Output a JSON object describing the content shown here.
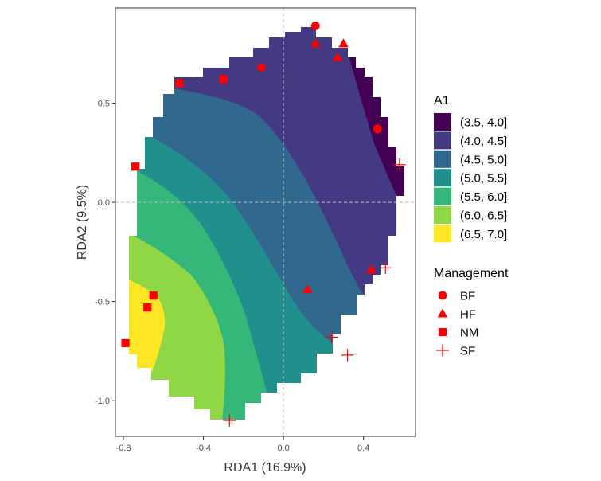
{
  "chart_data": {
    "type": "contour-scatter",
    "xlabel": "RDA1 (16.9%)",
    "ylabel": "RDA2 (9.5%)",
    "xlim": [
      -0.84,
      0.66
    ],
    "ylim": [
      -1.18,
      0.98
    ],
    "x_ticks": [
      -0.8,
      -0.4,
      0.0,
      0.4
    ],
    "x_tick_labels": [
      "-0.8",
      "-0.4",
      "0.0",
      "0.4"
    ],
    "y_ticks": [
      -1.0,
      -0.5,
      0.0,
      0.5
    ],
    "y_tick_labels": [
      "-1.0",
      "-0.5",
      "0.0",
      "0.5"
    ],
    "reference_lines": {
      "x": 0,
      "y": 0,
      "style": "dashed"
    },
    "grid": false,
    "fill_legend": {
      "title": "A1",
      "bins": [
        {
          "label": "(3.5, 4.0]",
          "color": "#440154"
        },
        {
          "label": "(4.0, 4.5]",
          "color": "#443A83"
        },
        {
          "label": "(4.5, 5.0]",
          "color": "#31688E"
        },
        {
          "label": "(5.0, 5.5]",
          "color": "#21908C"
        },
        {
          "label": "(5.5, 6.0]",
          "color": "#35B779"
        },
        {
          "label": "(6.0, 6.5]",
          "color": "#8FD744"
        },
        {
          "label": "(6.5, 7.0]",
          "color": "#FDE725"
        }
      ]
    },
    "shape_legend": {
      "title": "Management",
      "items": [
        {
          "label": "BF",
          "shape": "circle"
        },
        {
          "label": "HF",
          "shape": "triangle"
        },
        {
          "label": "NM",
          "shape": "square"
        },
        {
          "label": "SF",
          "shape": "cross"
        }
      ]
    },
    "point_color": "#FF0000",
    "points": [
      {
        "group": "BF",
        "x": 0.16,
        "y": 0.89
      },
      {
        "group": "BF",
        "x": -0.11,
        "y": 0.68
      },
      {
        "group": "BF",
        "x": 0.47,
        "y": 0.37
      },
      {
        "group": "HF",
        "x": 0.16,
        "y": 0.8
      },
      {
        "group": "HF",
        "x": 0.3,
        "y": 0.8
      },
      {
        "group": "HF",
        "x": 0.27,
        "y": 0.73
      },
      {
        "group": "HF",
        "x": 0.44,
        "y": -0.34
      },
      {
        "group": "HF",
        "x": 0.12,
        "y": -0.44
      },
      {
        "group": "NM",
        "x": -0.52,
        "y": 0.6
      },
      {
        "group": "NM",
        "x": -0.3,
        "y": 0.62
      },
      {
        "group": "NM",
        "x": -0.74,
        "y": 0.18
      },
      {
        "group": "NM",
        "x": -0.65,
        "y": -0.47
      },
      {
        "group": "NM",
        "x": -0.68,
        "y": -0.53
      },
      {
        "group": "NM",
        "x": -0.79,
        "y": -0.71
      },
      {
        "group": "SF",
        "x": 0.58,
        "y": 0.19
      },
      {
        "group": "SF",
        "x": 0.51,
        "y": -0.33
      },
      {
        "group": "SF",
        "x": 0.24,
        "y": -0.68
      },
      {
        "group": "SF",
        "x": 0.32,
        "y": -0.77
      },
      {
        "group": "SF",
        "x": -0.27,
        "y": -1.1
      }
    ]
  }
}
